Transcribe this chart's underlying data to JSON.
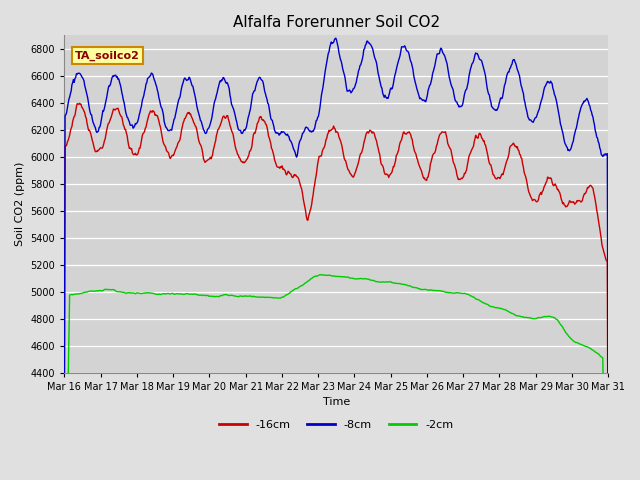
{
  "title": "Alfalfa Forerunner Soil CO2",
  "ylabel": "Soil CO2 (ppm)",
  "xlabel": "Time",
  "annotation": "TA_soilco2",
  "legend_labels": [
    "-16cm",
    "-8cm",
    "-2cm"
  ],
  "line_colors": [
    "#cc0000",
    "#0000cc",
    "#00cc00"
  ],
  "x_tick_labels": [
    "Mar 16",
    "Mar 17",
    "Mar 18",
    "Mar 19",
    "Mar 20",
    "Mar 21",
    "Mar 22",
    "Mar 23",
    "Mar 24",
    "Mar 25",
    "Mar 26",
    "Mar 27",
    "Mar 28",
    "Mar 29",
    "Mar 30",
    "Mar 31"
  ],
  "ylim": [
    4400,
    6900
  ],
  "background_color": "#e0e0e0",
  "plot_bg_color": "#d3d3d3",
  "grid_color": "#ffffff",
  "title_fontsize": 11,
  "label_fontsize": 8,
  "tick_fontsize": 7
}
